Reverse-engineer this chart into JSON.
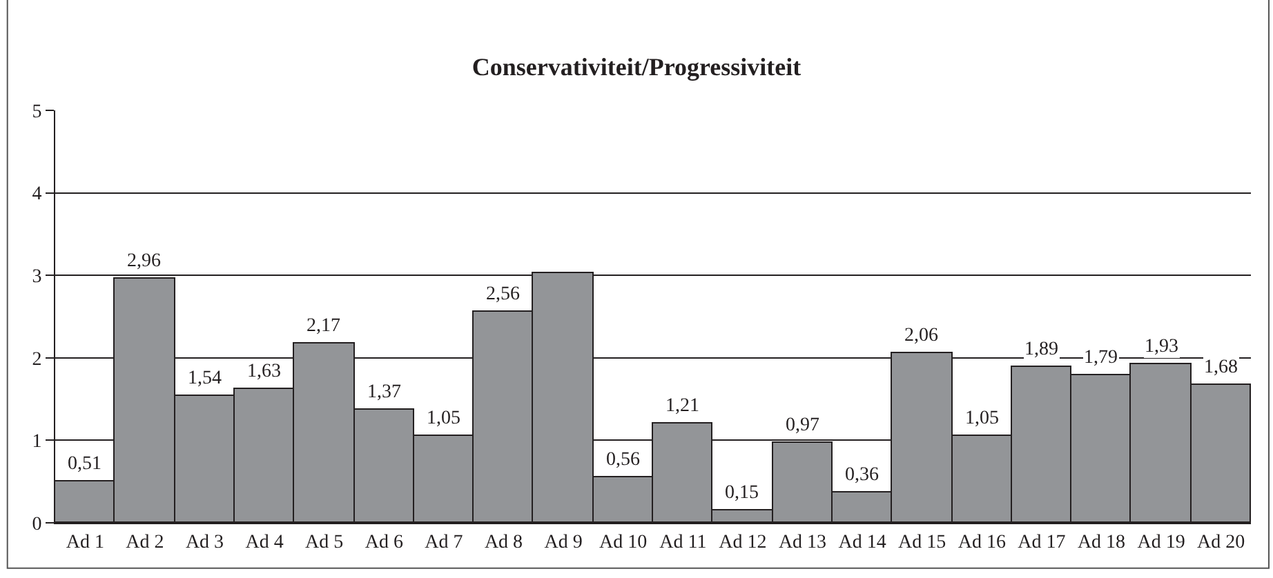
{
  "chart_data": {
    "type": "bar",
    "title": "Conservativiteit/Progressiviteit",
    "categories": [
      "Ad 1",
      "Ad 2",
      "Ad 3",
      "Ad 4",
      "Ad 5",
      "Ad 6",
      "Ad 7",
      "Ad 8",
      "Ad 9",
      "Ad 10",
      "Ad 11",
      "Ad 12",
      "Ad 13",
      "Ad 14",
      "Ad 15",
      "Ad 16",
      "Ad 17",
      "Ad 18",
      "Ad 19",
      "Ad 20"
    ],
    "values": [
      0.51,
      2.96,
      1.54,
      1.63,
      2.17,
      1.37,
      1.05,
      2.56,
      3.02,
      0.56,
      1.21,
      0.15,
      0.97,
      0.36,
      2.06,
      1.05,
      1.89,
      1.79,
      1.93,
      1.68
    ],
    "value_labels": [
      "0,51",
      "2,96",
      "1,54",
      "1,63",
      "2,17",
      "1,37",
      "1,05",
      "2,56",
      null,
      "0,56",
      "1,21",
      "0,15",
      "0,97",
      "0,36",
      "2,06",
      "1,05",
      "1,89",
      "1,79",
      "1,93",
      "1,68"
    ],
    "color": "#939598",
    "ylim": [
      0,
      5
    ],
    "yticks": [
      0,
      1,
      2,
      3,
      4,
      5
    ],
    "grid": "y"
  }
}
